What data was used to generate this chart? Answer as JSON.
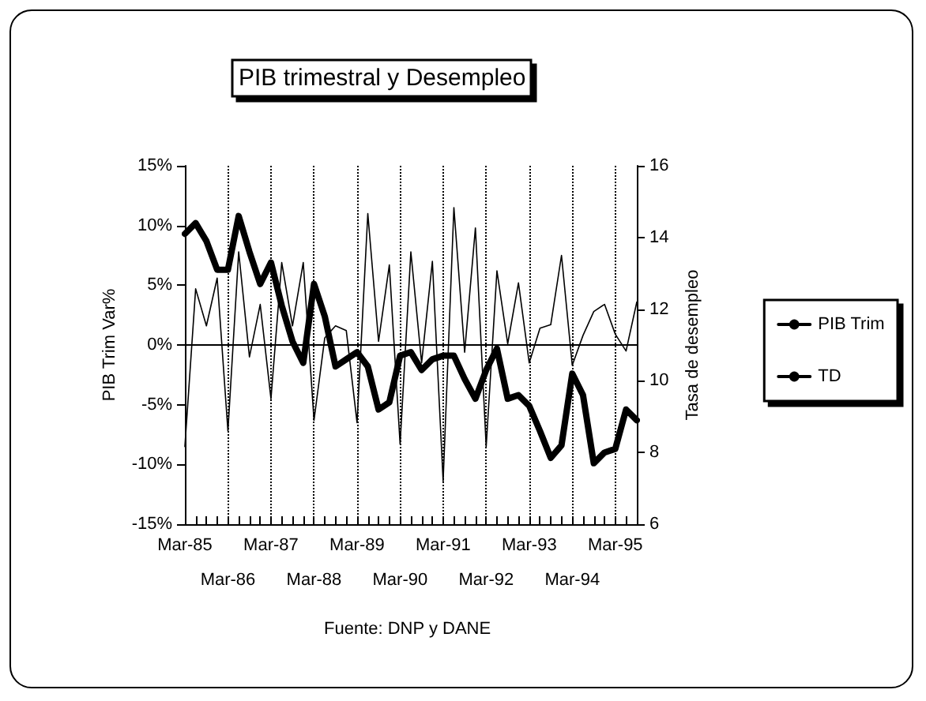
{
  "chart_data": {
    "type": "line",
    "title": "PIB trimestral y Desempleo",
    "ylabel": "PIB Trim Var%",
    "y2label": "Tasa de desempleo",
    "annotations": [
      "Fuente: DNP y DANE"
    ],
    "categories": [
      "Mar-85",
      null,
      null,
      null,
      "Mar-86",
      null,
      null,
      null,
      "Mar-87",
      null,
      null,
      null,
      "Mar-88",
      null,
      null,
      null,
      "Mar-89",
      null,
      null,
      null,
      "Mar-90",
      null,
      null,
      null,
      "Mar-91",
      null,
      null,
      null,
      "Mar-92",
      null,
      null,
      null,
      "Mar-93",
      null,
      null,
      null,
      "Mar-94",
      null,
      null,
      null,
      "Mar-95",
      null,
      null
    ],
    "series": [
      {
        "name": "PIB Trim",
        "color": "#000000",
        "values": [
          -8.5,
          4.7,
          1.6,
          5.6,
          -7.2,
          7.8,
          -1.0,
          3.4,
          -4.5,
          6.9,
          1.6,
          6.9,
          -6.3,
          0.6,
          1.6,
          1.2,
          -6.5,
          11.0,
          0.3,
          6.7,
          -8.3,
          7.8,
          -1.5,
          7.0,
          -11.4,
          11.5,
          -0.6,
          9.8,
          -8.5,
          6.2,
          0.1,
          5.2,
          -1.5,
          1.4,
          1.7,
          7.5,
          -1.7,
          0.8,
          2.8,
          3.4,
          0.9,
          -0.5,
          3.6
        ]
      },
      {
        "name": "TD",
        "color": "#000000",
        "axis": "y2",
        "values": [
          14.1,
          14.4,
          13.9,
          13.1,
          13.1,
          14.6,
          13.6,
          12.7,
          13.3,
          12.1,
          11.1,
          10.5,
          12.7,
          11.8,
          10.4,
          10.6,
          10.8,
          10.4,
          9.2,
          9.4,
          10.7,
          10.8,
          10.3,
          10.6,
          10.7,
          10.7,
          10.05,
          9.5,
          10.3,
          10.9,
          9.5,
          9.6,
          9.3,
          8.6,
          7.85,
          8.2,
          10.2,
          9.6,
          7.7,
          8.0,
          8.1,
          9.2,
          8.9
        ]
      }
    ],
    "ylim": [
      -15,
      15
    ],
    "yticks": [
      {
        "value": -15,
        "label": "-15%"
      },
      {
        "value": -10,
        "label": "-10%"
      },
      {
        "value": -5,
        "label": "-5%"
      },
      {
        "value": 0,
        "label": "0%"
      },
      {
        "value": 5,
        "label": "5%"
      },
      {
        "value": 10,
        "label": "10%"
      },
      {
        "value": 15,
        "label": "15%"
      }
    ],
    "y2lim": [
      6,
      16
    ],
    "y2ticks": [
      6,
      8,
      10,
      12,
      14,
      16
    ],
    "ref_lines": [
      {
        "axis": "y",
        "value": 0
      }
    ],
    "grid": "x",
    "legend": "right",
    "marker": "none",
    "line_style": "solid"
  }
}
